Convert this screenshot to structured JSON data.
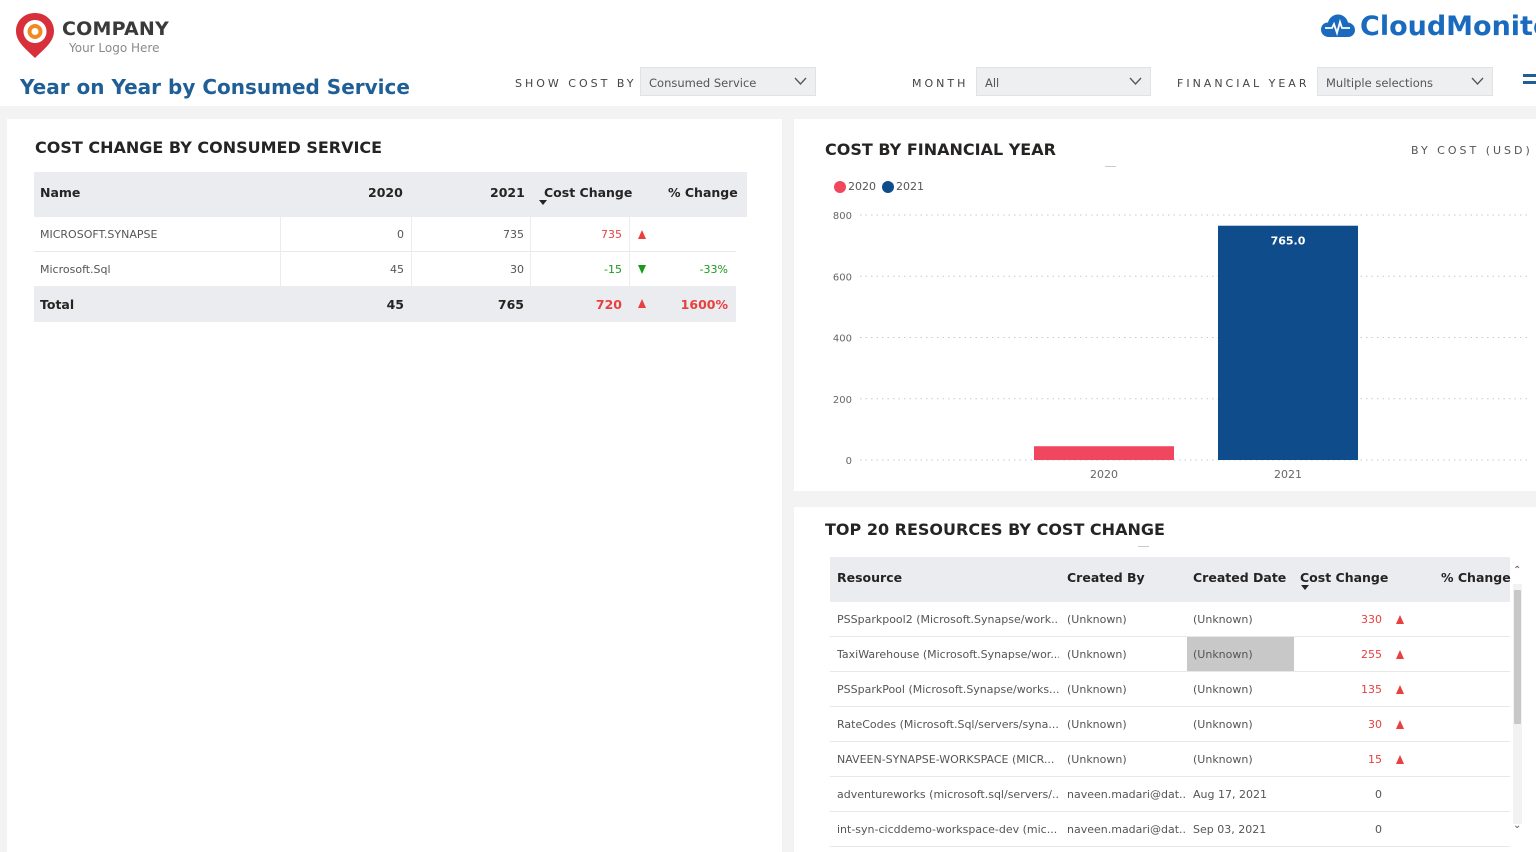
{
  "header": {
    "company_name": "COMPANY",
    "company_tagline": "Your Logo Here",
    "page_title": "Year on Year by Consumed Service",
    "brand_name": "CloudMonitor",
    "colors": {
      "title": "#1f5f96",
      "brand": "#1a6bbf",
      "logo_red": "#d7303b",
      "logo_orange": "#f08a24"
    }
  },
  "filters": {
    "show_cost_by": {
      "label": "SHOW COST BY",
      "value": "Consumed Service"
    },
    "month": {
      "label": "MONTH",
      "value": "All"
    },
    "financial_year": {
      "label": "FINANCIAL YEAR",
      "value": "Multiple selections"
    }
  },
  "cost_change_table": {
    "title": "COST CHANGE BY CONSUMED SERVICE",
    "columns": [
      "Name",
      "2020",
      "2021",
      "Cost Change",
      "% Change"
    ],
    "rows": [
      {
        "name": "MICROSOFT.SYNAPSE",
        "y2020": "0",
        "y2021": "735",
        "change": "735",
        "direction": "up",
        "pct": ""
      },
      {
        "name": "Microsoft.Sql",
        "y2020": "45",
        "y2021": "30",
        "change": "-15",
        "direction": "down",
        "pct": "-33%"
      }
    ],
    "total": {
      "name": "Total",
      "y2020": "45",
      "y2021": "765",
      "change": "720",
      "direction": "up",
      "pct": "1600%"
    }
  },
  "chart_panel": {
    "title": "COST BY FINANCIAL YEAR",
    "subtitle": "BY COST (USD)"
  },
  "chart_data": {
    "type": "bar",
    "categories": [
      "2020",
      "2021"
    ],
    "series": [
      {
        "name": "2020",
        "values": [
          45,
          null
        ],
        "color": "#f0475e"
      },
      {
        "name": "2021",
        "values": [
          null,
          765
        ],
        "color": "#0f4c8c"
      }
    ],
    "data_labels": [
      "",
      "765.0"
    ],
    "ylim": [
      0,
      800
    ],
    "yticks": [
      0,
      200,
      400,
      600,
      800
    ],
    "grid": true,
    "legend": "top-left"
  },
  "resources_table": {
    "title": "TOP 20 RESOURCES BY COST CHANGE",
    "columns": [
      "Resource",
      "Created By",
      "Created Date",
      "Cost Change",
      "% Change"
    ],
    "rows": [
      {
        "resource": "PSSparkpool2 (Microsoft.Synapse/work...",
        "created_by": "(Unknown)",
        "created_date": "(Unknown)",
        "change": "330",
        "direction": "up",
        "pct": ""
      },
      {
        "resource": "TaxiWarehouse (Microsoft.Synapse/wor...",
        "created_by": "(Unknown)",
        "created_date": "(Unknown)",
        "change": "255",
        "direction": "up",
        "pct": ""
      },
      {
        "resource": "PSSparkPool (Microsoft.Synapse/works...",
        "created_by": "(Unknown)",
        "created_date": "(Unknown)",
        "change": "135",
        "direction": "up",
        "pct": ""
      },
      {
        "resource": "RateCodes (Microsoft.Sql/servers/syna...",
        "created_by": "(Unknown)",
        "created_date": "(Unknown)",
        "change": "30",
        "direction": "up",
        "pct": ""
      },
      {
        "resource": "NAVEEN-SYNAPSE-WORKSPACE (MICR...",
        "created_by": "(Unknown)",
        "created_date": "(Unknown)",
        "change": "15",
        "direction": "up",
        "pct": ""
      },
      {
        "resource": "adventureworks (microsoft.sql/servers/...",
        "created_by": "naveen.madari@dat...",
        "created_date": "Aug 17, 2021",
        "change": "0",
        "direction": "",
        "pct": ""
      },
      {
        "resource": "int-syn-cicddemo-workspace-dev (mic...",
        "created_by": "naveen.madari@dat...",
        "created_date": "Sep 03, 2021",
        "change": "0",
        "direction": "",
        "pct": ""
      }
    ]
  }
}
